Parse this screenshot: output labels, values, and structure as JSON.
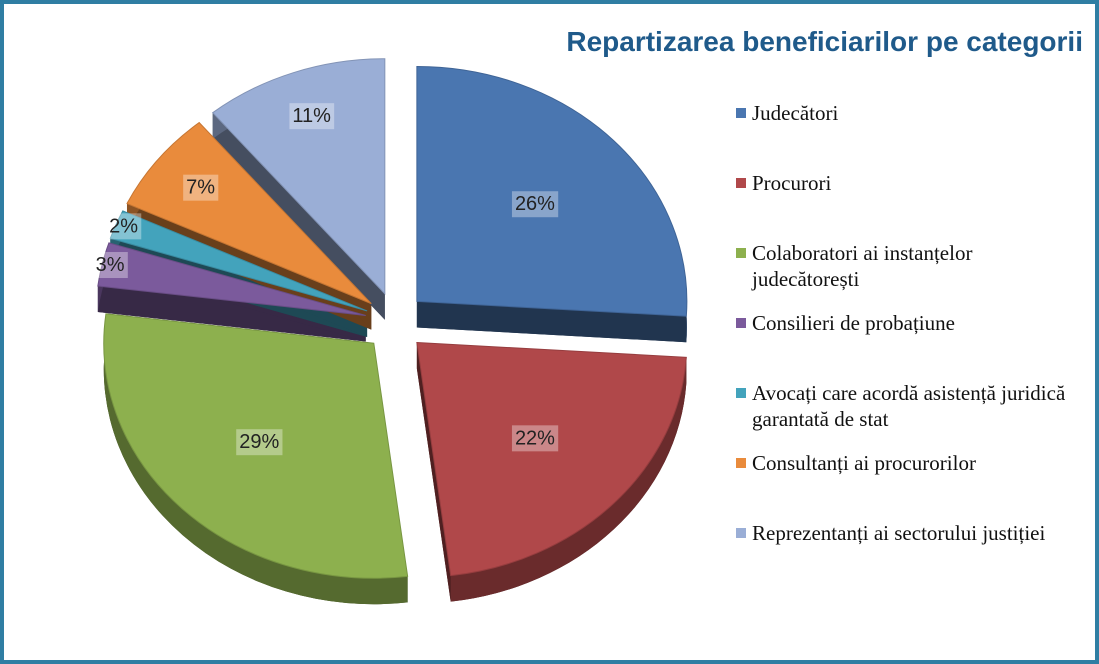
{
  "chart_data": {
    "type": "pie",
    "title": "Repartizarea beneficiarilor pe categorii",
    "categories": [
      "Judecători",
      "Procurori",
      "Colaboratori ai instanțelor judecătorești",
      "Consilieri de probațiune",
      "Avocați care acordă asistență juridică garantată de stat",
      "Consultanți ai procurorilor",
      "Reprezentanți ai sectorului justiției"
    ],
    "values": [
      26,
      22,
      29,
      3,
      2,
      7,
      11
    ],
    "value_labels": [
      "26%",
      "22%",
      "29%",
      "3%",
      "2%",
      "7%",
      "11%"
    ],
    "colors": [
      "#4a76b0",
      "#b0484a",
      "#8db04e",
      "#7b5a9c",
      "#43a3bc",
      "#e98b3c",
      "#9aaed6"
    ],
    "legend": "right"
  }
}
